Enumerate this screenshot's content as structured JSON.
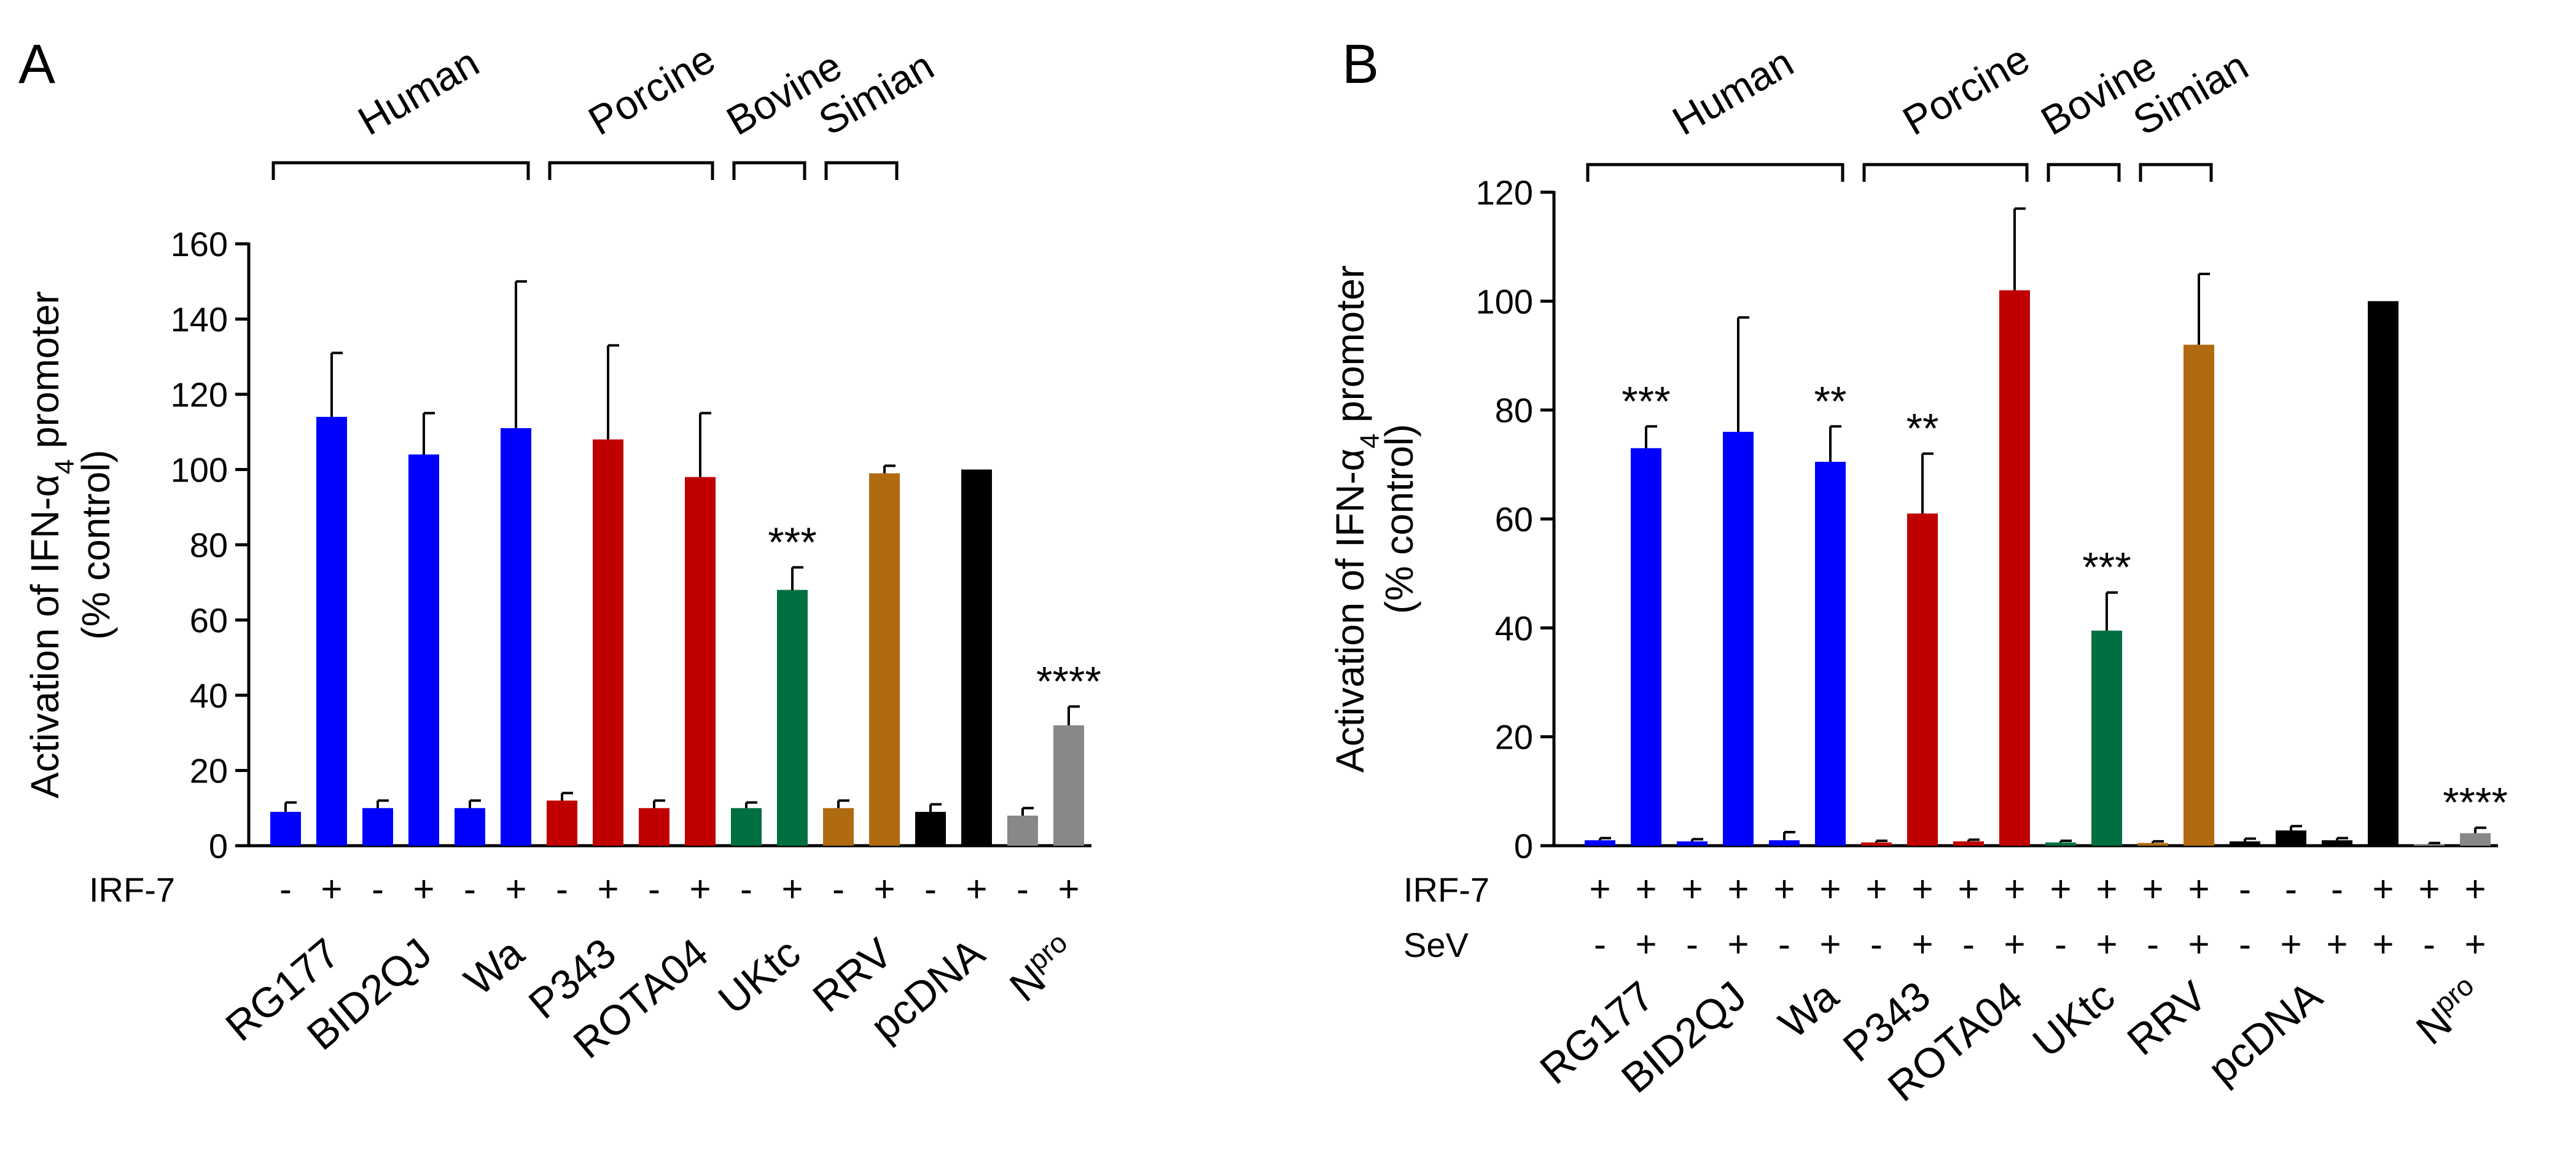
{
  "chart_data": [
    {
      "type": "bar",
      "panel": "A",
      "ylabel_line1": "Activation of IFN-α",
      "ylabel_sub": "4",
      "ylabel_suffix": " promoter",
      "ylabel_line2": "(% control)",
      "ylim": [
        0,
        160
      ],
      "yticks": [
        0,
        20,
        40,
        60,
        80,
        100,
        120,
        140,
        160
      ],
      "rows": [
        {
          "label": "IRF-7",
          "signs": [
            "-",
            "+",
            "-",
            "+",
            "-",
            "+",
            "-",
            "+",
            "-",
            "+",
            "-",
            "+",
            "-",
            "+",
            "-",
            "+",
            "-",
            "+"
          ]
        }
      ],
      "bars": [
        {
          "value": 9,
          "error": 2.5,
          "color": "#0000ff"
        },
        {
          "value": 114,
          "error": 17,
          "color": "#0000ff"
        },
        {
          "value": 10,
          "error": 2,
          "color": "#0000ff"
        },
        {
          "value": 104,
          "error": 11,
          "color": "#0000ff"
        },
        {
          "value": 10,
          "error": 2,
          "color": "#0000ff"
        },
        {
          "value": 111,
          "error": 39,
          "color": "#0000ff"
        },
        {
          "value": 12,
          "error": 2,
          "color": "#c00000"
        },
        {
          "value": 108,
          "error": 25,
          "color": "#c00000"
        },
        {
          "value": 10,
          "error": 2,
          "color": "#c00000"
        },
        {
          "value": 98,
          "error": 17,
          "color": "#c00000"
        },
        {
          "value": 10,
          "error": 1.5,
          "color": "#007040"
        },
        {
          "value": 68,
          "error": 6,
          "color": "#007040"
        },
        {
          "value": 10,
          "error": 2,
          "color": "#b06a10"
        },
        {
          "value": 99,
          "error": 2,
          "color": "#b06a10"
        },
        {
          "value": 9,
          "error": 2,
          "color": "#000000"
        },
        {
          "value": 100,
          "error": 0,
          "color": "#000000"
        },
        {
          "value": 8,
          "error": 2,
          "color": "#888888"
        },
        {
          "value": 32,
          "error": 5,
          "color": "#888888"
        }
      ],
      "significance": [
        {
          "bar": 11,
          "label": "***"
        },
        {
          "bar": 17,
          "label": "****"
        }
      ],
      "groups": [
        {
          "label": "Human",
          "from": 0,
          "to": 5
        },
        {
          "label": "Porcine",
          "from": 6,
          "to": 9
        },
        {
          "label": "Bovine",
          "from": 10,
          "to": 11
        },
        {
          "label": "Simian",
          "from": 12,
          "to": 13
        }
      ],
      "categories": [
        {
          "label": "RG177",
          "center": 0.5
        },
        {
          "label": "BID2QJ",
          "center": 2.5
        },
        {
          "label": "Wa",
          "center": 4.5
        },
        {
          "label": "P343",
          "center": 6.5
        },
        {
          "label": "ROTA04",
          "center": 8.5
        },
        {
          "label": "UKtc",
          "center": 10.5
        },
        {
          "label": "RRV",
          "center": 12.5
        },
        {
          "label": "pcDNA",
          "center": 14.5
        },
        {
          "label": "N",
          "sup": "pro",
          "center": 16.5
        }
      ]
    },
    {
      "type": "bar",
      "panel": "B",
      "ylabel_line1": "Activation of IFN-α",
      "ylabel_sub": "4",
      "ylabel_suffix": " promoter",
      "ylabel_line2": "(% control)",
      "ylim": [
        0,
        120
      ],
      "yticks": [
        0,
        20,
        40,
        60,
        80,
        100,
        120
      ],
      "rows": [
        {
          "label": "IRF-7",
          "signs": [
            "+",
            "+",
            "+",
            "+",
            "+",
            "+",
            "+",
            "+",
            "+",
            "+",
            "+",
            "+",
            "+",
            "+",
            "-",
            "-",
            "-",
            "+",
            "+",
            "+"
          ]
        },
        {
          "label": "SeV",
          "signs": [
            "-",
            "+",
            "-",
            "+",
            "-",
            "+",
            "-",
            "+",
            "-",
            "+",
            "-",
            "+",
            "-",
            "+",
            "-",
            "+",
            "+",
            "+",
            "-",
            "+"
          ]
        }
      ],
      "bars": [
        {
          "value": 1,
          "error": 0.4,
          "color": "#0000ff"
        },
        {
          "value": 73,
          "error": 4,
          "color": "#0000ff"
        },
        {
          "value": 0.8,
          "error": 0.4,
          "color": "#0000ff"
        },
        {
          "value": 76,
          "error": 21,
          "color": "#0000ff"
        },
        {
          "value": 1,
          "error": 1.5,
          "color": "#0000ff"
        },
        {
          "value": 70.5,
          "error": 6.5,
          "color": "#0000ff"
        },
        {
          "value": 0.6,
          "error": 0.3,
          "color": "#c00000"
        },
        {
          "value": 61,
          "error": 11,
          "color": "#c00000"
        },
        {
          "value": 0.8,
          "error": 0.3,
          "color": "#c00000"
        },
        {
          "value": 102,
          "error": 15,
          "color": "#c00000"
        },
        {
          "value": 0.6,
          "error": 0.3,
          "color": "#007040"
        },
        {
          "value": 39.5,
          "error": 7,
          "color": "#007040"
        },
        {
          "value": 0.5,
          "error": 0.3,
          "color": "#b06a10"
        },
        {
          "value": 92,
          "error": 13,
          "color": "#b06a10"
        },
        {
          "value": 0.8,
          "error": 0.5,
          "color": "#000000"
        },
        {
          "value": 2.8,
          "error": 0.8,
          "color": "#000000"
        },
        {
          "value": 1,
          "error": 0.4,
          "color": "#000000"
        },
        {
          "value": 100,
          "error": 0,
          "color": "#000000"
        },
        {
          "value": 0.3,
          "error": 0.2,
          "color": "#888888"
        },
        {
          "value": 2.3,
          "error": 1,
          "color": "#888888"
        }
      ],
      "significance": [
        {
          "bar": 1,
          "label": "***"
        },
        {
          "bar": 5,
          "label": "**"
        },
        {
          "bar": 7,
          "label": "**"
        },
        {
          "bar": 11,
          "label": "***"
        },
        {
          "bar": 19,
          "label": "****"
        }
      ],
      "groups": [
        {
          "label": "Human",
          "from": 0,
          "to": 5
        },
        {
          "label": "Porcine",
          "from": 6,
          "to": 9
        },
        {
          "label": "Bovine",
          "from": 10,
          "to": 11
        },
        {
          "label": "Simian",
          "from": 12,
          "to": 13
        }
      ],
      "categories": [
        {
          "label": "RG177",
          "center": 0.5
        },
        {
          "label": "BID2QJ",
          "center": 2.5
        },
        {
          "label": "Wa",
          "center": 4.5
        },
        {
          "label": "P343",
          "center": 6.5
        },
        {
          "label": "ROTA04",
          "center": 8.5
        },
        {
          "label": "UKtc",
          "center": 10.5
        },
        {
          "label": "RRV",
          "center": 12.5
        },
        {
          "label": "pcDNA",
          "center": 15
        },
        {
          "label": "N",
          "sup": "pro",
          "center": 18.5
        }
      ]
    }
  ]
}
